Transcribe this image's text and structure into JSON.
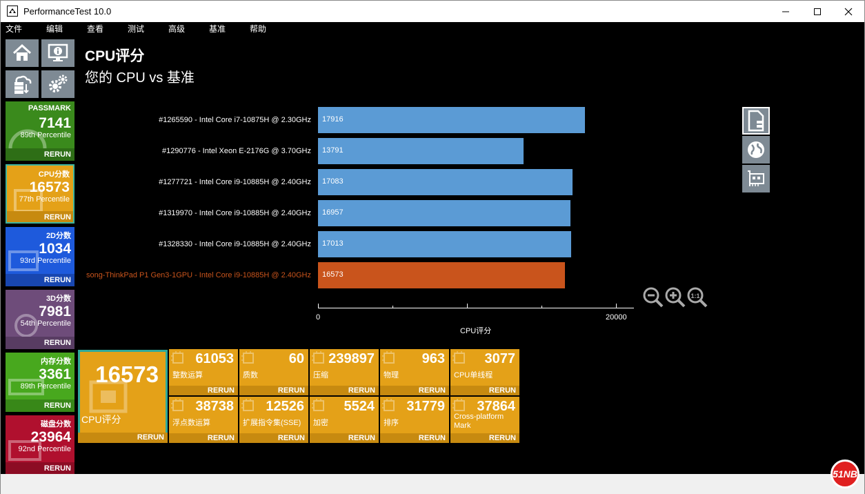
{
  "window": {
    "title": "PerformanceTest 10.0"
  },
  "menu": [
    "文件",
    "编辑",
    "查看",
    "测试",
    "高级",
    "基准",
    "帮助"
  ],
  "sidebar": {
    "tiles": [
      {
        "name": "PASSMARK",
        "value": "7141",
        "percentile": "89th Percentile",
        "rerun": "RERUN",
        "color": "#3a8a1c",
        "rerun_color": "#2e6e16"
      },
      {
        "name": "CPU分数",
        "value": "16573",
        "percentile": "77th Percentile",
        "rerun": "RERUN",
        "color": "#e4a118",
        "rerun_color": "#c78a10"
      },
      {
        "name": "2D分数",
        "value": "1034",
        "percentile": "93rd Percentile",
        "rerun": "RERUN",
        "color": "#1e5adc",
        "rerun_color": "#1846b0"
      },
      {
        "name": "3D分数",
        "value": "7981",
        "percentile": "54th Percentile",
        "rerun": "RERUN",
        "color": "#6e4c7a",
        "rerun_color": "#583c62"
      },
      {
        "name": "内存分数",
        "value": "3361",
        "percentile": "89th Percentile",
        "rerun": "RERUN",
        "color": "#48a81e",
        "rerun_color": "#388818"
      },
      {
        "name": "磁盘分数",
        "value": "23964",
        "percentile": "92nd Percentile",
        "rerun": "RERUN",
        "color": "#b0102e",
        "rerun_color": "#8c0c24"
      }
    ]
  },
  "main": {
    "title": "CPU评分",
    "subtitle": "您的 CPU vs 基准",
    "xlabel": "CPU评分",
    "ticks": [
      "0",
      "20000"
    ],
    "summary": {
      "value": "16573",
      "label": "CPU评分",
      "rerun": "RERUN"
    },
    "subtests": [
      {
        "value": "61053",
        "label": "整数运算",
        "rerun": "RERUN"
      },
      {
        "value": "60",
        "label": "质数",
        "rerun": "RERUN"
      },
      {
        "value": "239897",
        "label": "压缩",
        "rerun": "RERUN"
      },
      {
        "value": "963",
        "label": "物理",
        "rerun": "RERUN"
      },
      {
        "value": "3077",
        "label": "CPU单线程",
        "rerun": "RERUN"
      },
      {
        "value": "38738",
        "label": "浮点数运算",
        "rerun": "RERUN"
      },
      {
        "value": "12526",
        "label": "扩展指令集(SSE)",
        "rerun": "RERUN"
      },
      {
        "value": "5524",
        "label": "加密",
        "rerun": "RERUN"
      },
      {
        "value": "31779",
        "label": "排序",
        "rerun": "RERUN"
      },
      {
        "value": "37864",
        "label": "Cross-platform Mark",
        "rerun": "RERUN"
      }
    ]
  },
  "chart_data": {
    "type": "bar",
    "orientation": "horizontal",
    "title": "CPU评分",
    "xlabel": "CPU评分",
    "xlim": [
      0,
      20000
    ],
    "categories": [
      "#1265590 - Intel Core i7-10875H @ 2.30GHz",
      "#1290776 - Intel Xeon E-2176G @ 3.70GHz",
      "#1277721 - Intel Core i9-10885H @ 2.40GHz",
      "#1319970 - Intel Core i9-10885H @ 2.40GHz",
      "#1328330 - Intel Core i9-10885H @ 2.40GHz",
      "song-ThinkPad P1 Gen3-1GPU - Intel Core i9-10885H @ 2.40GHz"
    ],
    "values": [
      17916,
      13791,
      17083,
      16957,
      17013,
      16573
    ],
    "value_labels": [
      "17916",
      "13791",
      "17083",
      "16957",
      "17013",
      "16573"
    ],
    "colors": [
      "#5b9bd5",
      "#5b9bd5",
      "#5b9bd5",
      "#5b9bd5",
      "#5b9bd5",
      "#c9541c"
    ],
    "label_colors": [
      "#ffffff",
      "#ffffff",
      "#ffffff",
      "#ffffff",
      "#ffffff",
      "#c9541c"
    ]
  },
  "watermark": "51NB"
}
